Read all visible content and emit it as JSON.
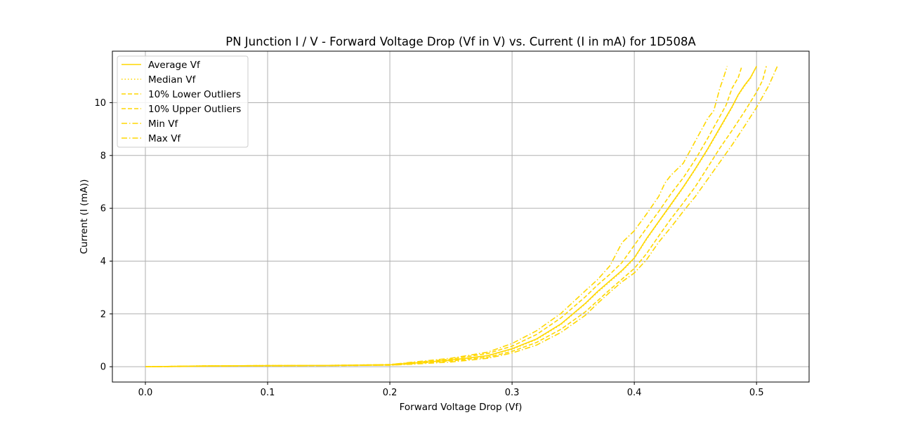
{
  "chart_data": {
    "type": "line",
    "title": "PN Junction I / V - Forward Voltage Drop (Vf in V) vs. Current (I in mA) for 1D508A",
    "xlabel": "Forward Voltage Drop (Vf)",
    "ylabel": "Current (I (mA))",
    "xlim": [
      -0.027,
      0.543
    ],
    "ylim": [
      -0.58,
      11.95
    ],
    "xticks": [
      0.0,
      0.1,
      0.2,
      0.3,
      0.4,
      0.5
    ],
    "xtick_labels": [
      "0.0",
      "0.1",
      "0.2",
      "0.3",
      "0.4",
      "0.5"
    ],
    "yticks": [
      0,
      2,
      4,
      6,
      8,
      10
    ],
    "ytick_labels": [
      "0",
      "2",
      "4",
      "6",
      "8",
      "10"
    ],
    "grid": true,
    "legend_position": "top-left",
    "series": [
      {
        "name": "Average Vf",
        "color": "#ffd700",
        "dash": "solid",
        "points": [
          [
            0.0,
            0.0
          ],
          [
            0.05,
            0.03
          ],
          [
            0.1,
            0.04
          ],
          [
            0.15,
            0.05
          ],
          [
            0.2,
            0.07
          ],
          [
            0.22,
            0.14
          ],
          [
            0.25,
            0.25
          ],
          [
            0.28,
            0.42
          ],
          [
            0.3,
            0.68
          ],
          [
            0.32,
            1.05
          ],
          [
            0.34,
            1.62
          ],
          [
            0.36,
            2.4
          ],
          [
            0.37,
            2.85
          ],
          [
            0.38,
            3.25
          ],
          [
            0.39,
            3.65
          ],
          [
            0.4,
            4.12
          ],
          [
            0.41,
            4.85
          ],
          [
            0.42,
            5.5
          ],
          [
            0.43,
            6.15
          ],
          [
            0.44,
            6.8
          ],
          [
            0.45,
            7.5
          ],
          [
            0.46,
            8.25
          ],
          [
            0.47,
            9.05
          ],
          [
            0.48,
            9.85
          ],
          [
            0.485,
            10.3
          ],
          [
            0.49,
            10.65
          ],
          [
            0.495,
            10.95
          ],
          [
            0.5,
            11.38
          ]
        ]
      },
      {
        "name": "Median Vf",
        "color": "#ffd700",
        "dash": "dotted",
        "points": [
          [
            0.0,
            0.0
          ],
          [
            0.05,
            0.03
          ],
          [
            0.1,
            0.04
          ],
          [
            0.15,
            0.05
          ],
          [
            0.2,
            0.07
          ],
          [
            0.22,
            0.14
          ],
          [
            0.25,
            0.25
          ],
          [
            0.28,
            0.41
          ],
          [
            0.3,
            0.66
          ],
          [
            0.32,
            1.03
          ],
          [
            0.34,
            1.6
          ],
          [
            0.36,
            2.38
          ],
          [
            0.37,
            2.82
          ],
          [
            0.38,
            3.22
          ],
          [
            0.39,
            3.62
          ],
          [
            0.4,
            4.1
          ],
          [
            0.41,
            4.82
          ],
          [
            0.42,
            5.48
          ],
          [
            0.43,
            6.12
          ],
          [
            0.44,
            6.78
          ],
          [
            0.45,
            7.48
          ],
          [
            0.46,
            8.22
          ],
          [
            0.47,
            9.02
          ],
          [
            0.48,
            9.82
          ],
          [
            0.485,
            10.28
          ],
          [
            0.49,
            10.62
          ],
          [
            0.495,
            10.92
          ],
          [
            0.5,
            11.38
          ]
        ]
      },
      {
        "name": "10% Lower Outliers",
        "color": "#ffd700",
        "dash": "dashed",
        "points": [
          [
            0.0,
            0.0
          ],
          [
            0.05,
            0.03
          ],
          [
            0.1,
            0.04
          ],
          [
            0.15,
            0.05
          ],
          [
            0.2,
            0.08
          ],
          [
            0.22,
            0.16
          ],
          [
            0.25,
            0.29
          ],
          [
            0.28,
            0.5
          ],
          [
            0.3,
            0.78
          ],
          [
            0.32,
            1.22
          ],
          [
            0.34,
            1.85
          ],
          [
            0.36,
            2.65
          ],
          [
            0.37,
            3.1
          ],
          [
            0.38,
            3.5
          ],
          [
            0.39,
            3.95
          ],
          [
            0.4,
            4.6
          ],
          [
            0.41,
            5.25
          ],
          [
            0.42,
            5.88
          ],
          [
            0.43,
            6.55
          ],
          [
            0.44,
            7.15
          ],
          [
            0.45,
            7.85
          ],
          [
            0.46,
            8.65
          ],
          [
            0.47,
            9.48
          ],
          [
            0.475,
            9.9
          ],
          [
            0.48,
            10.55
          ],
          [
            0.485,
            10.95
          ],
          [
            0.488,
            11.38
          ]
        ]
      },
      {
        "name": "10% Upper Outliers",
        "color": "#ffd700",
        "dash": "dashed",
        "points": [
          [
            0.0,
            0.0
          ],
          [
            0.05,
            0.02
          ],
          [
            0.1,
            0.03
          ],
          [
            0.15,
            0.04
          ],
          [
            0.2,
            0.06
          ],
          [
            0.22,
            0.12
          ],
          [
            0.25,
            0.22
          ],
          [
            0.28,
            0.36
          ],
          [
            0.3,
            0.58
          ],
          [
            0.32,
            0.92
          ],
          [
            0.34,
            1.42
          ],
          [
            0.36,
            2.08
          ],
          [
            0.37,
            2.5
          ],
          [
            0.38,
            2.92
          ],
          [
            0.39,
            3.32
          ],
          [
            0.4,
            3.72
          ],
          [
            0.41,
            4.28
          ],
          [
            0.42,
            4.95
          ],
          [
            0.43,
            5.6
          ],
          [
            0.44,
            6.2
          ],
          [
            0.45,
            6.82
          ],
          [
            0.46,
            7.55
          ],
          [
            0.47,
            8.28
          ],
          [
            0.48,
            8.95
          ],
          [
            0.49,
            9.65
          ],
          [
            0.5,
            10.4
          ],
          [
            0.505,
            10.85
          ],
          [
            0.508,
            11.38
          ]
        ]
      },
      {
        "name": "Min Vf",
        "color": "#ffd700",
        "dash": "dashdot",
        "points": [
          [
            0.0,
            0.0
          ],
          [
            0.05,
            0.03
          ],
          [
            0.1,
            0.04
          ],
          [
            0.15,
            0.05
          ],
          [
            0.2,
            0.08
          ],
          [
            0.22,
            0.18
          ],
          [
            0.25,
            0.32
          ],
          [
            0.28,
            0.55
          ],
          [
            0.3,
            0.88
          ],
          [
            0.32,
            1.36
          ],
          [
            0.34,
            2.02
          ],
          [
            0.36,
            2.88
          ],
          [
            0.37,
            3.3
          ],
          [
            0.38,
            3.82
          ],
          [
            0.39,
            4.7
          ],
          [
            0.4,
            5.15
          ],
          [
            0.41,
            5.78
          ],
          [
            0.42,
            6.45
          ],
          [
            0.425,
            6.95
          ],
          [
            0.43,
            7.25
          ],
          [
            0.44,
            7.7
          ],
          [
            0.45,
            8.55
          ],
          [
            0.46,
            9.4
          ],
          [
            0.465,
            9.7
          ],
          [
            0.47,
            10.55
          ],
          [
            0.473,
            10.95
          ],
          [
            0.476,
            11.38
          ]
        ]
      },
      {
        "name": "Max Vf",
        "color": "#ffd700",
        "dash": "dashdot",
        "points": [
          [
            0.0,
            0.0
          ],
          [
            0.05,
            0.02
          ],
          [
            0.1,
            0.03
          ],
          [
            0.15,
            0.04
          ],
          [
            0.2,
            0.06
          ],
          [
            0.22,
            0.1
          ],
          [
            0.25,
            0.18
          ],
          [
            0.28,
            0.32
          ],
          [
            0.3,
            0.52
          ],
          [
            0.32,
            0.82
          ],
          [
            0.34,
            1.3
          ],
          [
            0.36,
            1.95
          ],
          [
            0.37,
            2.4
          ],
          [
            0.38,
            2.82
          ],
          [
            0.39,
            3.22
          ],
          [
            0.4,
            3.55
          ],
          [
            0.41,
            4.05
          ],
          [
            0.42,
            4.72
          ],
          [
            0.43,
            5.28
          ],
          [
            0.44,
            5.88
          ],
          [
            0.45,
            6.45
          ],
          [
            0.46,
            7.1
          ],
          [
            0.47,
            7.75
          ],
          [
            0.48,
            8.4
          ],
          [
            0.49,
            9.1
          ],
          [
            0.5,
            9.82
          ],
          [
            0.51,
            10.65
          ],
          [
            0.517,
            11.38
          ]
        ]
      }
    ]
  }
}
